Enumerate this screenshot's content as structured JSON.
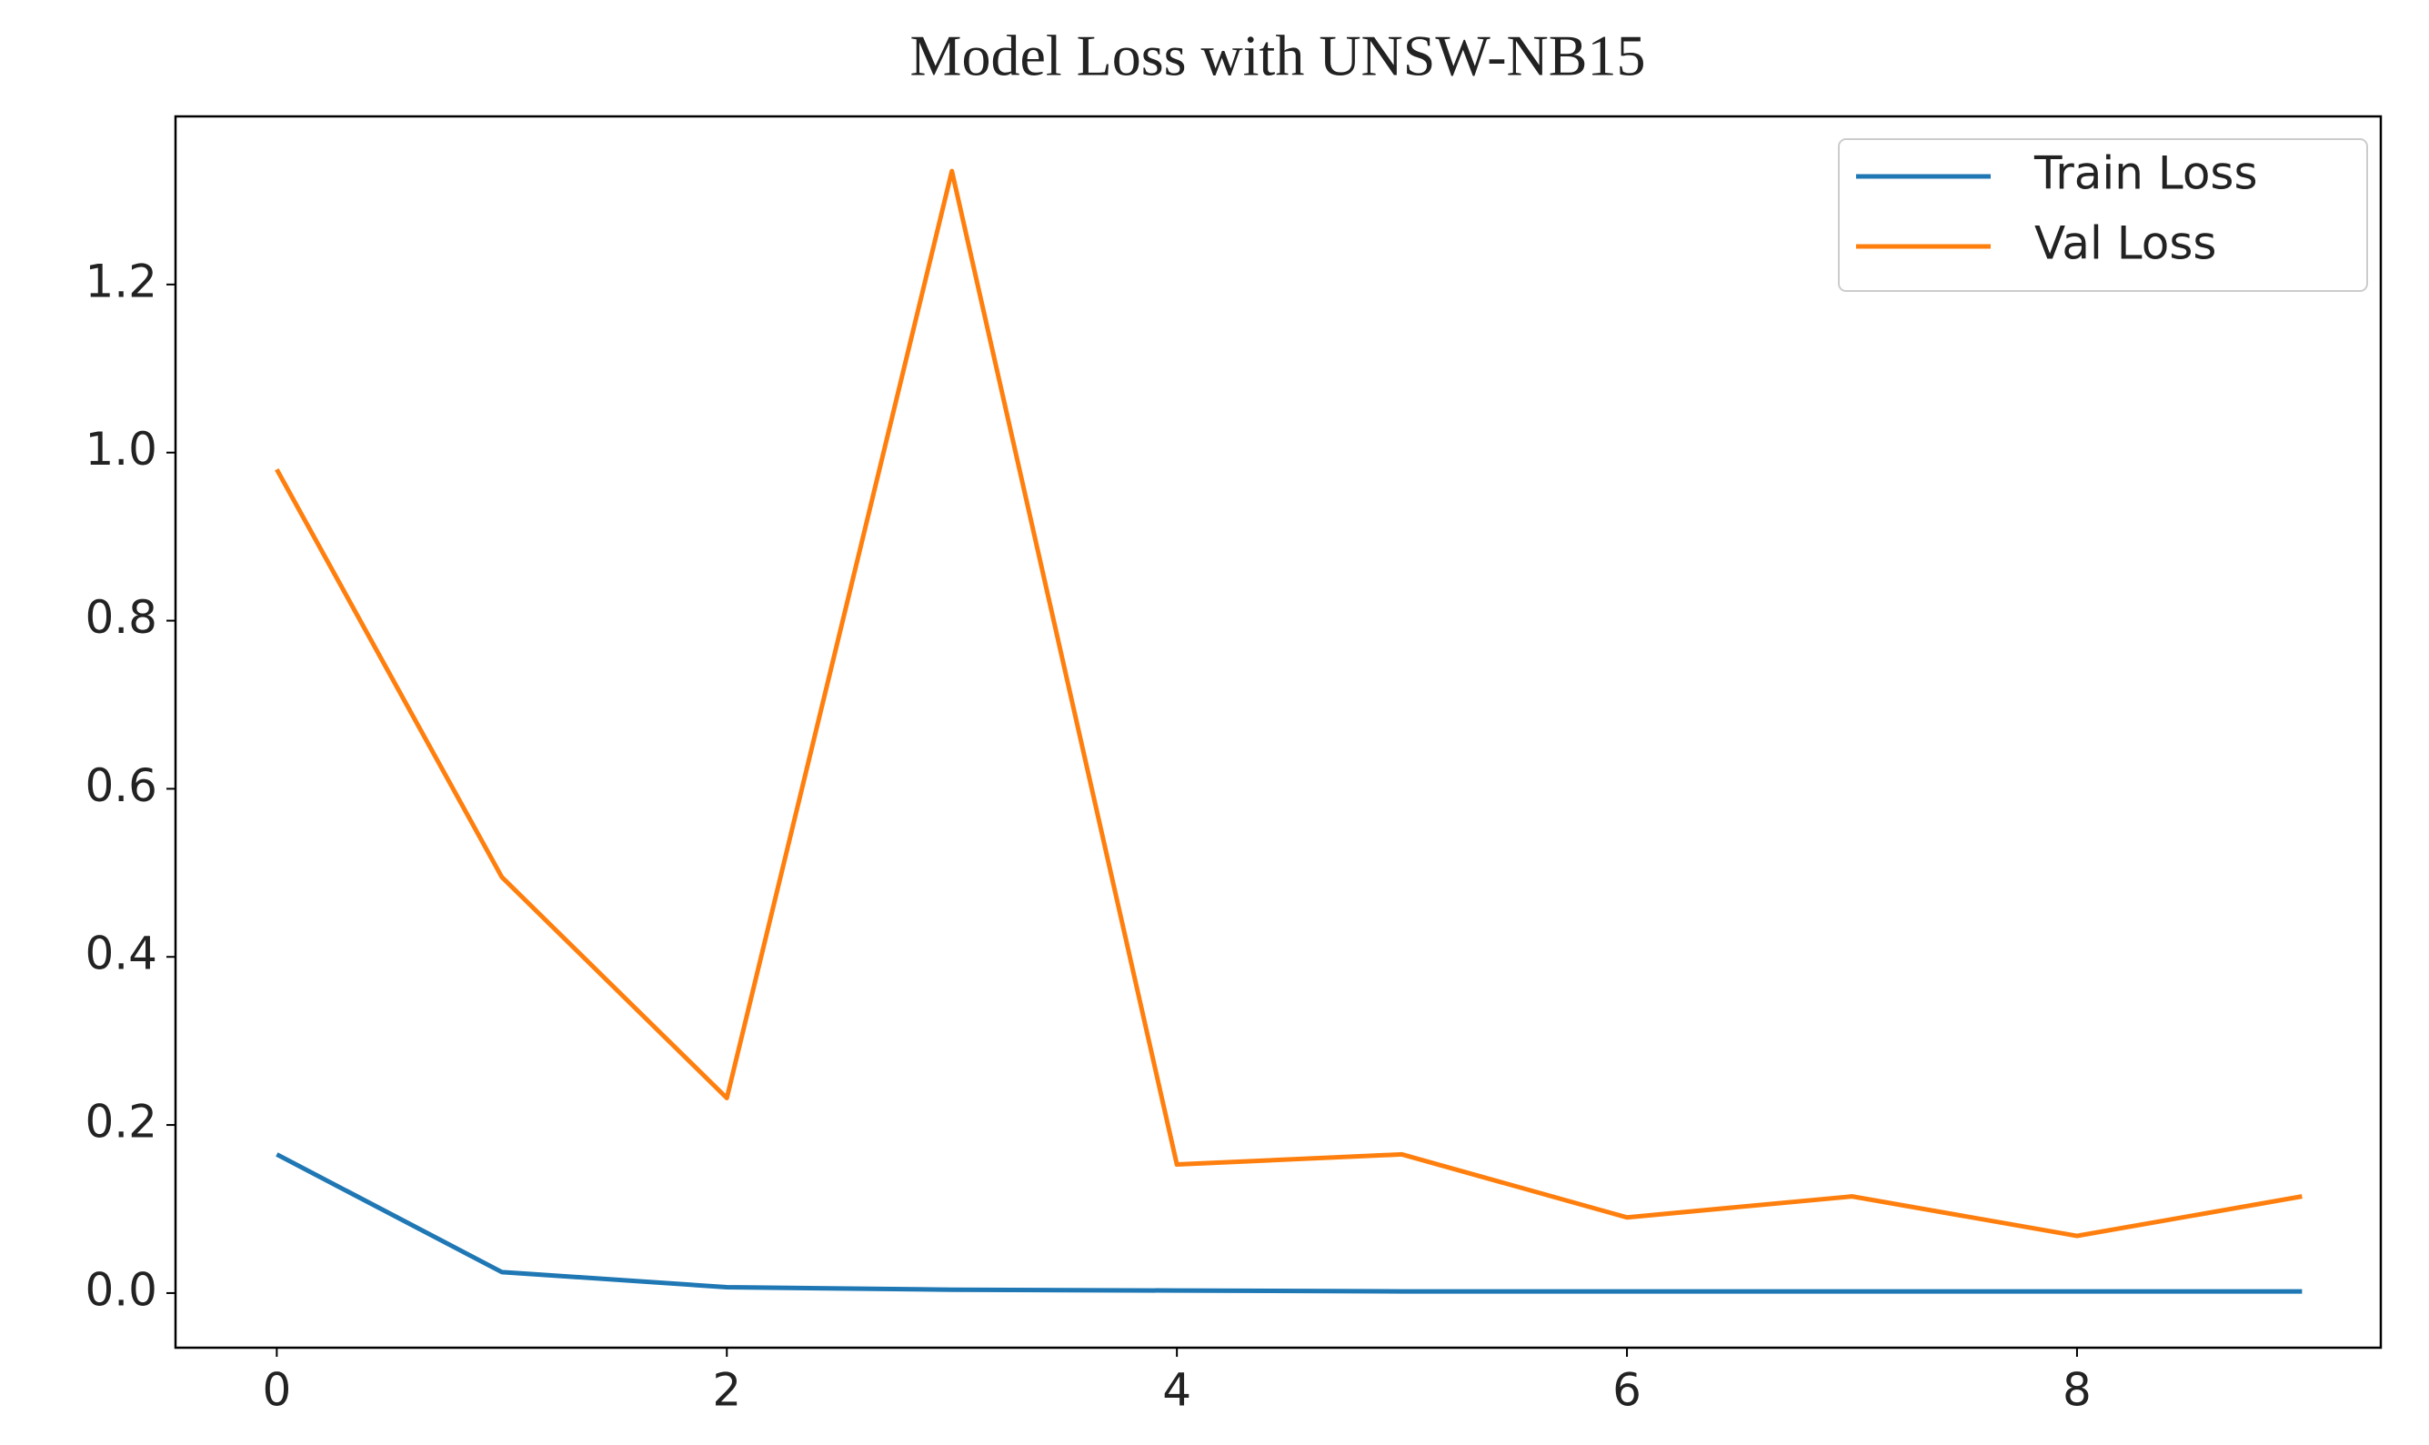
{
  "chart_data": {
    "type": "line",
    "title": "Model Loss with UNSW-NB15",
    "x": [
      0,
      1,
      2,
      3,
      4,
      5,
      6,
      7,
      8,
      9
    ],
    "series": [
      {
        "name": "Train Loss",
        "color": "#1f77b4",
        "values": [
          0.165,
          0.025,
          0.007,
          0.004,
          0.003,
          0.002,
          0.002,
          0.002,
          0.002,
          0.002
        ]
      },
      {
        "name": "Val Loss",
        "color": "#ff7f0e",
        "values": [
          0.98,
          0.495,
          0.232,
          1.335,
          0.153,
          0.165,
          0.09,
          0.115,
          0.068,
          0.115
        ]
      }
    ],
    "xlim": [
      -0.45,
      9.35
    ],
    "xticks": [
      0,
      2,
      4,
      6,
      8
    ],
    "ylim": [
      -0.065,
      1.4
    ],
    "yticks": [
      {
        "value": 0,
        "label": "0.0"
      },
      0.2,
      0.4,
      0.6,
      0.8,
      {
        "value": 1,
        "label": "1.0"
      },
      1.2
    ],
    "legend": "upper right",
    "grid": false
  }
}
